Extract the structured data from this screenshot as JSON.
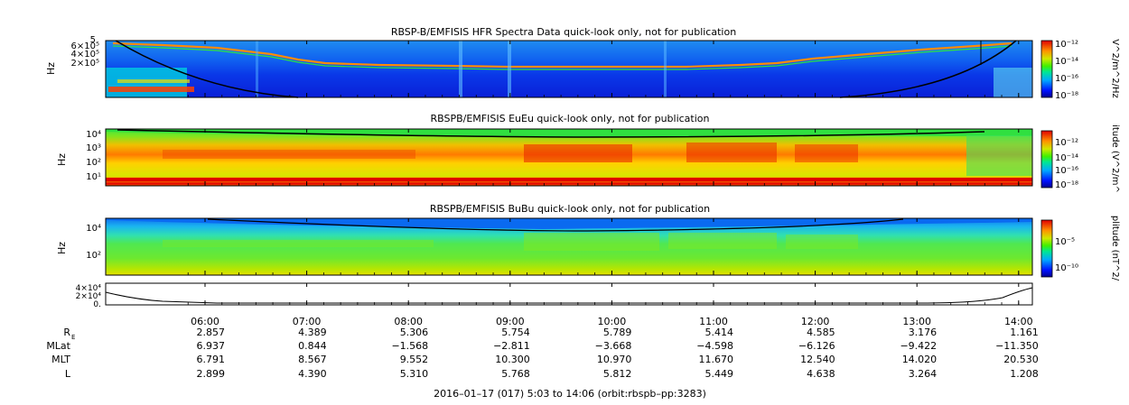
{
  "panels": [
    {
      "title": "RBSP-B/EMFISIS  HFR Spectra Data quick-look only, not for publication",
      "ylabel": "Hz",
      "yticks": [
        "6×10⁵",
        "4×10⁵",
        "2×10⁵"
      ],
      "ytick_extra": "5",
      "cbar_label": "V^2/m^2/Hz",
      "cbar_ticks": [
        "10⁻¹²",
        "10⁻¹⁴",
        "10⁻¹⁶",
        "10⁻¹⁸"
      ]
    },
    {
      "title": "RBSPB/EMFISIS  EuEu quick-look only, not for publication",
      "ylabel": "Hz",
      "yticks": [
        "10⁴",
        "10³",
        "10²",
        "10¹"
      ],
      "cbar_label": "itude (V^2/m^",
      "cbar_ticks": [
        "10⁻¹²",
        "10⁻¹⁴",
        "10⁻¹⁶",
        "10⁻¹⁸"
      ]
    },
    {
      "title": "RBSPB/EMFISIS  BuBu quick-look only, not for publication",
      "ylabel": "Hz",
      "yticks": [
        "10⁴",
        "10²"
      ],
      "cbar_label": "plitude (nT^2/",
      "cbar_ticks": [
        "10⁻⁵",
        "10⁻¹⁰"
      ]
    },
    {
      "yticks": [
        "4×10⁴",
        "2×10⁴",
        "0."
      ]
    }
  ],
  "chart_data": {
    "type": "heatmap",
    "x_time_ticks": [
      "06:00",
      "07:00",
      "08:00",
      "09:00",
      "10:00",
      "11:00",
      "12:00",
      "13:00",
      "14:00"
    ],
    "ephemeris": {
      "rows": [
        {
          "label": "R",
          "sub": "E",
          "values": [
            "2.857",
            "4.389",
            "5.306",
            "5.754",
            "5.789",
            "5.414",
            "4.585",
            "3.176",
            "1.161"
          ]
        },
        {
          "label": "MLat",
          "values": [
            "6.937",
            "0.844",
            "−1.568",
            "−2.811",
            "−3.668",
            "−4.598",
            "−6.126",
            "−9.422",
            "−11.350"
          ]
        },
        {
          "label": "MLT",
          "values": [
            "6.791",
            "8.567",
            "9.552",
            "10.300",
            "10.970",
            "11.670",
            "12.540",
            "14.020",
            "20.530"
          ]
        },
        {
          "label": "L",
          "values": [
            "2.899",
            "4.390",
            "5.310",
            "5.768",
            "5.812",
            "5.449",
            "4.638",
            "3.264",
            "1.208"
          ]
        }
      ]
    },
    "footer": "2016–01–17 (017) 5:03 to 14:06 (orbit:rbspb–pp:3283)",
    "colormap": [
      "#000080",
      "#0020ff",
      "#00a0ff",
      "#00e0a0",
      "#40e020",
      "#c0e000",
      "#ffc000",
      "#ff6000",
      "#e00000"
    ]
  }
}
